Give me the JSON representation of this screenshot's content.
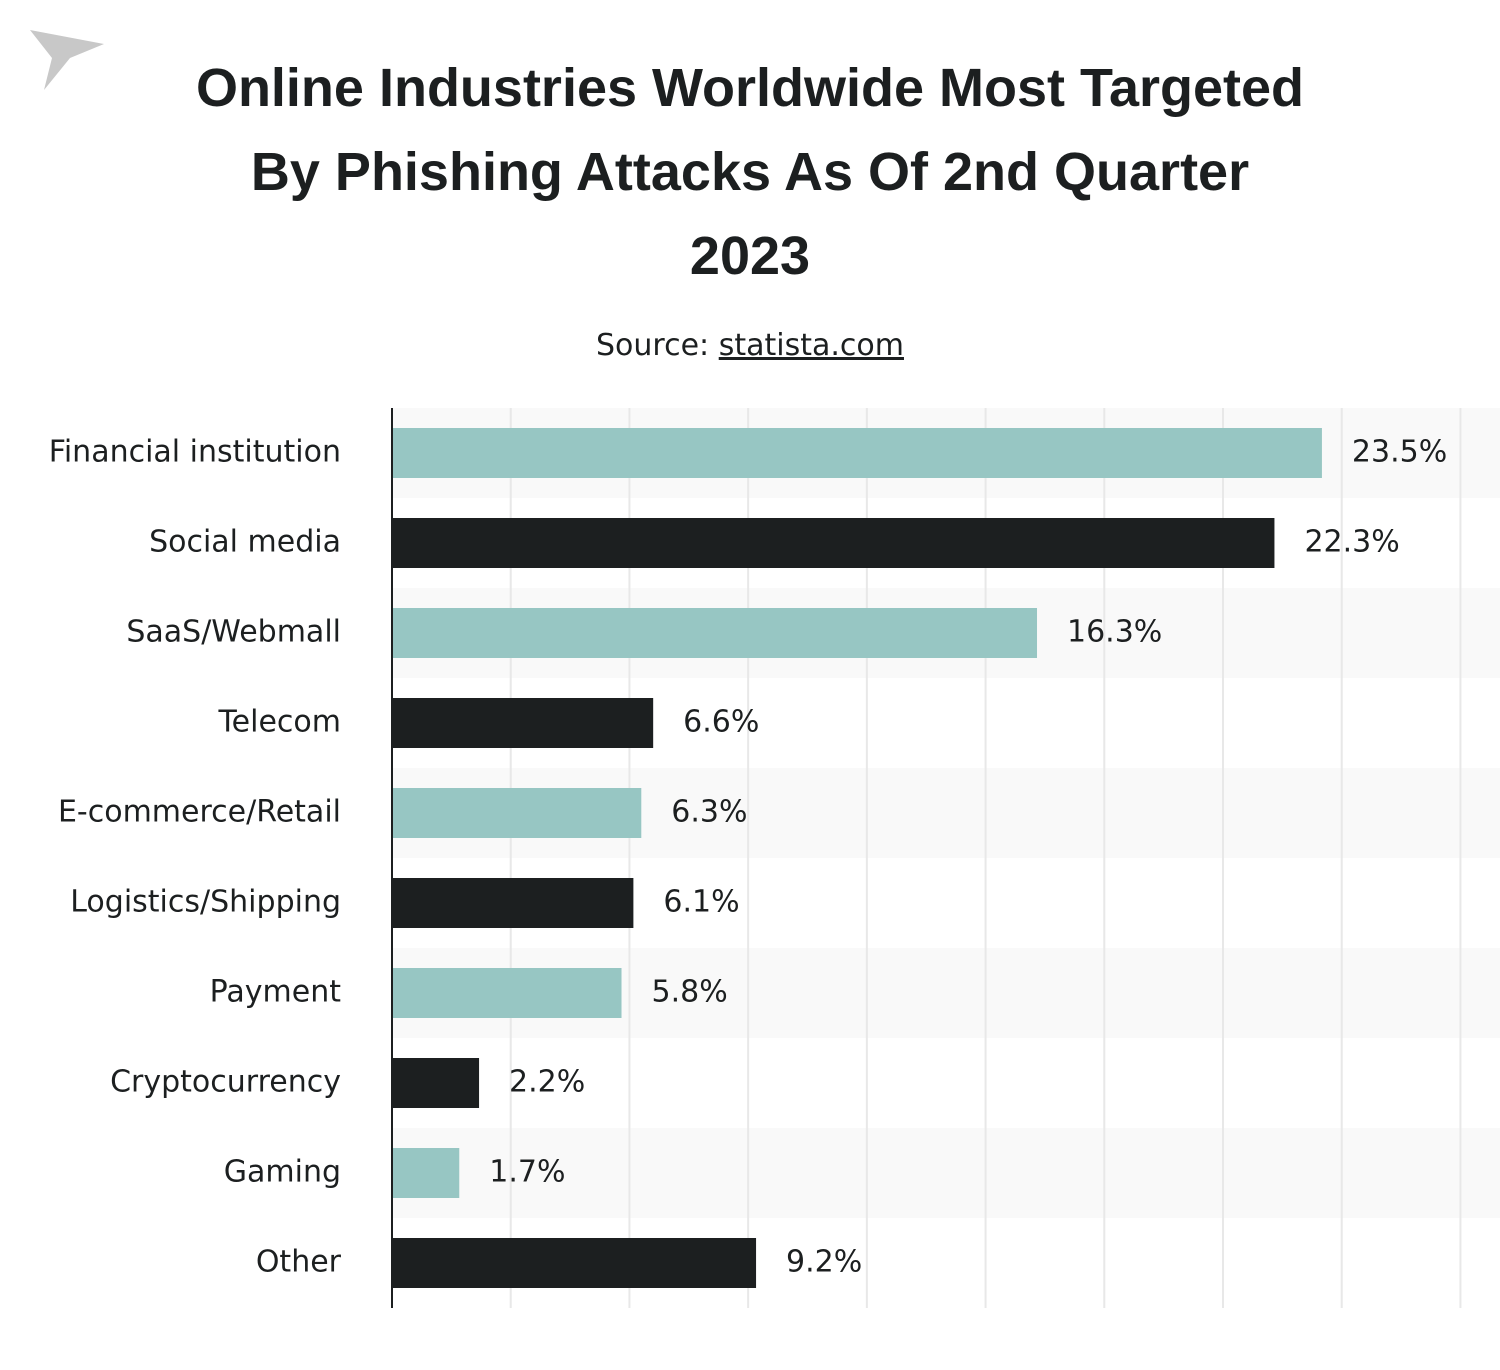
{
  "chart_data": {
    "type": "bar",
    "orientation": "horizontal",
    "title": "Online Industries Worldwide Most Targeted By Phishing Attacks As Of 2nd Quarter 2023",
    "source_label": "Source:",
    "source": "statista.com",
    "categories": [
      "Financial institution",
      "Social media",
      "SaaS/Webmall",
      "Telecom",
      "E-commerce/Retail",
      "Logistics/Shipping",
      "Payment",
      "Cryptocurrency",
      "Gaming",
      "Other"
    ],
    "values": [
      23.5,
      22.3,
      16.3,
      6.6,
      6.3,
      6.1,
      5.8,
      2.2,
      1.7,
      9.2
    ],
    "value_labels": [
      "23.5%",
      "22.3%",
      "16.3%",
      "6.6%",
      "6.3%",
      "6.1%",
      "5.8%",
      "2.2%",
      "1.7%",
      "9.2%"
    ],
    "colors": [
      "#97c6c3",
      "#1c1f20",
      "#97c6c3",
      "#1c1f20",
      "#97c6c3",
      "#1c1f20",
      "#97c6c3",
      "#1c1f20",
      "#97c6c3",
      "#1c1f20"
    ],
    "xlim": [
      0,
      28
    ],
    "xticks": [
      3,
      6,
      9,
      12,
      15,
      18,
      21,
      24,
      27
    ],
    "grid": true
  }
}
